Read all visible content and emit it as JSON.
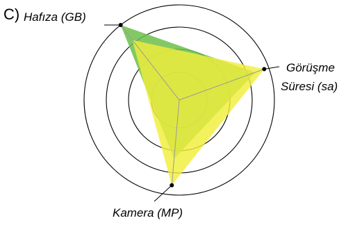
{
  "panel_label": "C)",
  "axes": [
    {
      "label": "Hafıza (GB)",
      "angle_deg": -128
    },
    {
      "label_lines": [
        "Görüşme",
        "Süresi (sa)"
      ],
      "angle_deg": -20
    },
    {
      "label": "Kamera (MP)",
      "angle_deg": 95
    }
  ],
  "rings": 4,
  "series": [
    {
      "color": "#6cbf4a",
      "opacity": 0.85,
      "values": [
        1.0,
        0.85,
        0.62
      ]
    },
    {
      "color": "#f2ee3c",
      "opacity": 0.82,
      "values": [
        0.8,
        0.95,
        0.9
      ]
    }
  ],
  "axis_markers": [
    1.0,
    0.95,
    0.9
  ]
}
